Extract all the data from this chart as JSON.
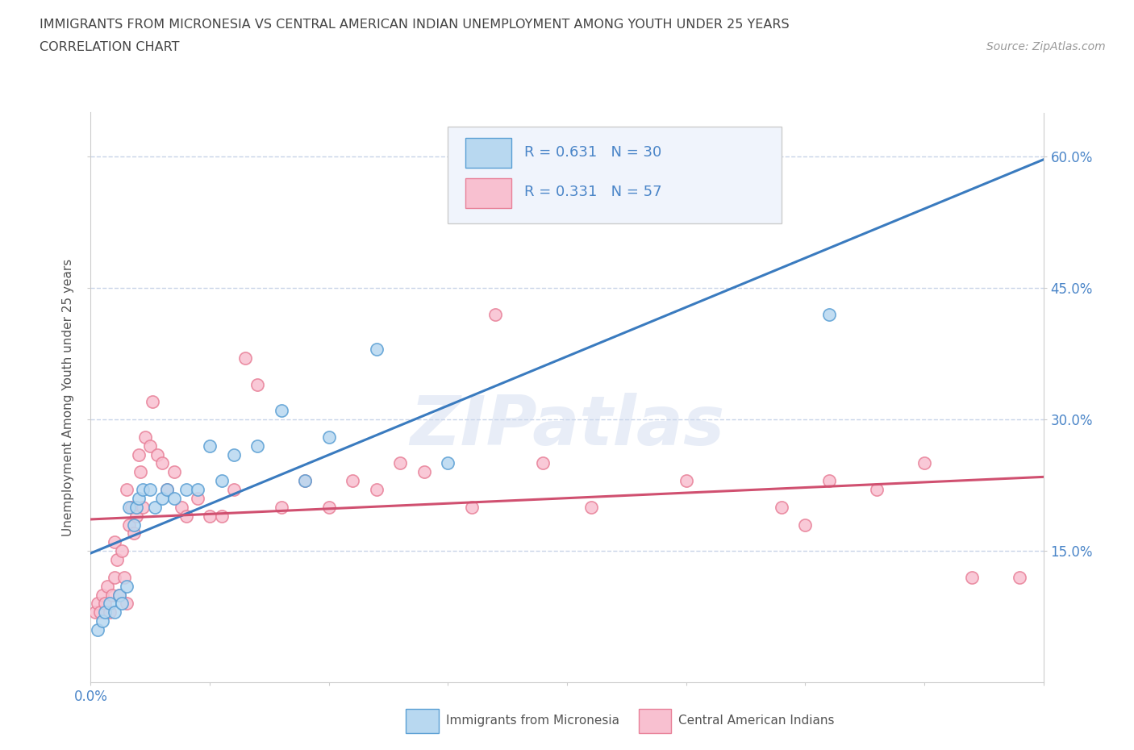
{
  "title_line1": "IMMIGRANTS FROM MICRONESIA VS CENTRAL AMERICAN INDIAN UNEMPLOYMENT AMONG YOUTH UNDER 25 YEARS",
  "title_line2": "CORRELATION CHART",
  "source_text": "Source: ZipAtlas.com",
  "ylabel": "Unemployment Among Youth under 25 years",
  "xlim": [
    0.0,
    0.4
  ],
  "ylim": [
    0.0,
    0.65
  ],
  "yticks": [
    0.15,
    0.3,
    0.45,
    0.6
  ],
  "ytick_labels": [
    "15.0%",
    "30.0%",
    "45.0%",
    "60.0%"
  ],
  "xticks": [
    0.0,
    0.05,
    0.1,
    0.15,
    0.2,
    0.25,
    0.3,
    0.35,
    0.4
  ],
  "xtick_labels_show": {
    "0.0": "0.0%"
  },
  "series_blue": {
    "label": "Immigrants from Micronesia",
    "R": "0.631",
    "N": "30",
    "marker_face": "#b8d8f0",
    "marker_edge": "#5a9fd4",
    "line_color": "#3a7bbf",
    "x": [
      0.003,
      0.005,
      0.006,
      0.008,
      0.01,
      0.012,
      0.013,
      0.015,
      0.016,
      0.018,
      0.019,
      0.02,
      0.022,
      0.025,
      0.027,
      0.03,
      0.032,
      0.035,
      0.04,
      0.045,
      0.05,
      0.055,
      0.06,
      0.07,
      0.08,
      0.09,
      0.1,
      0.12,
      0.15,
      0.31
    ],
    "y": [
      0.06,
      0.07,
      0.08,
      0.09,
      0.08,
      0.1,
      0.09,
      0.11,
      0.2,
      0.18,
      0.2,
      0.21,
      0.22,
      0.22,
      0.2,
      0.21,
      0.22,
      0.21,
      0.22,
      0.22,
      0.27,
      0.23,
      0.26,
      0.27,
      0.31,
      0.23,
      0.28,
      0.38,
      0.25,
      0.42
    ]
  },
  "series_pink": {
    "label": "Central American Indians",
    "R": "0.331",
    "N": "57",
    "marker_face": "#f8c0d0",
    "marker_edge": "#e88098",
    "line_color": "#d05070",
    "x": [
      0.002,
      0.003,
      0.004,
      0.005,
      0.006,
      0.007,
      0.008,
      0.009,
      0.01,
      0.01,
      0.011,
      0.012,
      0.013,
      0.014,
      0.015,
      0.015,
      0.016,
      0.017,
      0.018,
      0.019,
      0.02,
      0.021,
      0.022,
      0.023,
      0.025,
      0.026,
      0.028,
      0.03,
      0.032,
      0.035,
      0.038,
      0.04,
      0.045,
      0.05,
      0.055,
      0.06,
      0.065,
      0.07,
      0.08,
      0.09,
      0.1,
      0.11,
      0.12,
      0.13,
      0.14,
      0.16,
      0.17,
      0.19,
      0.21,
      0.25,
      0.29,
      0.3,
      0.31,
      0.33,
      0.35,
      0.37,
      0.39
    ],
    "y": [
      0.08,
      0.09,
      0.08,
      0.1,
      0.09,
      0.11,
      0.08,
      0.1,
      0.12,
      0.16,
      0.14,
      0.1,
      0.15,
      0.12,
      0.09,
      0.22,
      0.18,
      0.2,
      0.17,
      0.19,
      0.26,
      0.24,
      0.2,
      0.28,
      0.27,
      0.32,
      0.26,
      0.25,
      0.22,
      0.24,
      0.2,
      0.19,
      0.21,
      0.19,
      0.19,
      0.22,
      0.37,
      0.34,
      0.2,
      0.23,
      0.2,
      0.23,
      0.22,
      0.25,
      0.24,
      0.2,
      0.42,
      0.25,
      0.2,
      0.23,
      0.2,
      0.18,
      0.23,
      0.22,
      0.25,
      0.12,
      0.12
    ]
  },
  "watermark": "ZIPatlas",
  "background_color": "#ffffff",
  "grid_color": "#c8d4e8",
  "title_color": "#444444",
  "axis_label_color": "#555555",
  "tick_color": "#4a85c8",
  "source_color": "#999999",
  "legend_bg": "#f0f4fc",
  "legend_border": "#cccccc"
}
